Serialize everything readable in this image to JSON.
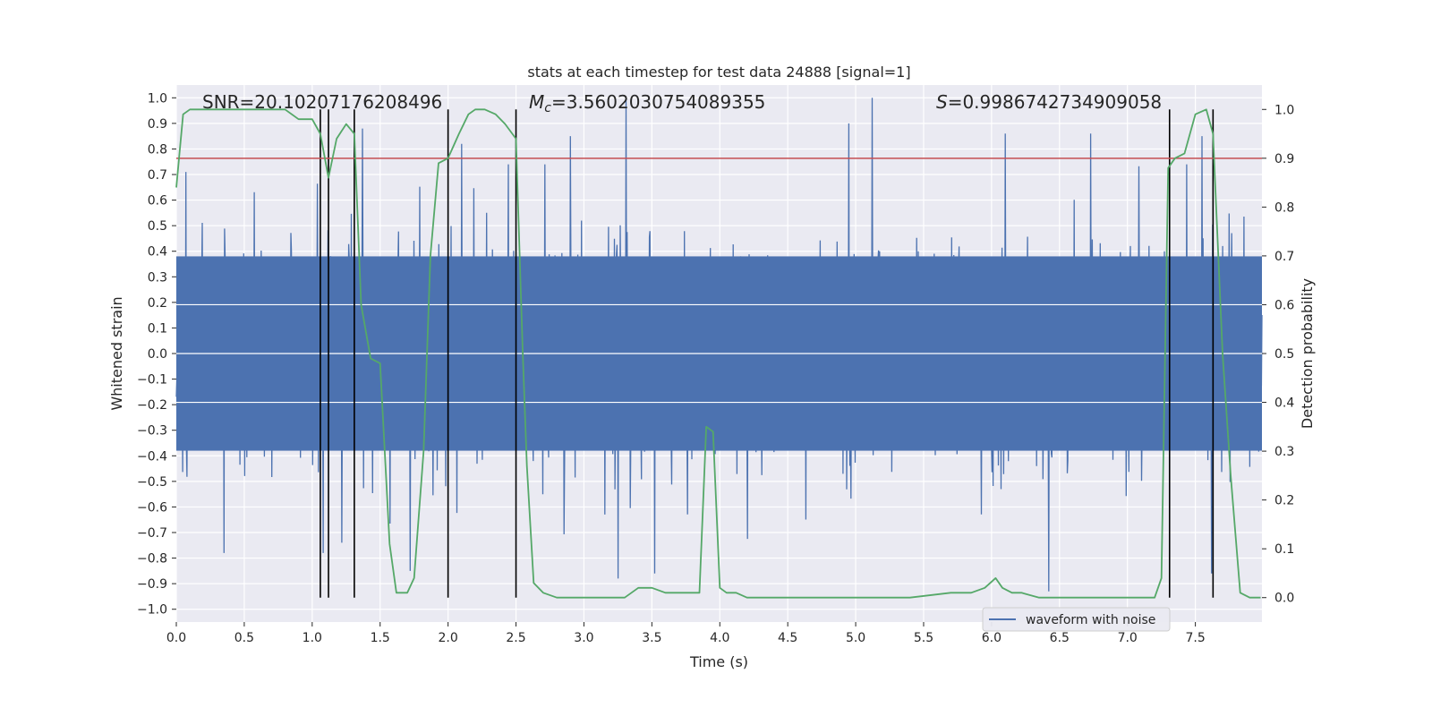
{
  "chart_data": {
    "type": "line",
    "title": "stats at each timestep for test data 24888 [signal=1]",
    "xlabel": "Time (s)",
    "ylabel_left": "Whitened strain",
    "ylabel_right": "Detection probability",
    "xlim": [
      0.0,
      7.99
    ],
    "ylim_left": [
      -1.05,
      1.05
    ],
    "ylim_right": [
      -0.05,
      1.05
    ],
    "x_ticks": [
      "0.0",
      "0.5",
      "1.0",
      "1.5",
      "2.0",
      "2.5",
      "3.0",
      "3.5",
      "4.0",
      "4.5",
      "5.0",
      "5.5",
      "6.0",
      "6.5",
      "7.0",
      "7.5"
    ],
    "y_ticks_left": [
      "−1.0",
      "−0.9",
      "−0.8",
      "−0.7",
      "−0.6",
      "−0.5",
      "−0.4",
      "−0.3",
      "−0.2",
      "−0.1",
      "0.0",
      "0.1",
      "0.2",
      "0.3",
      "0.4",
      "0.5",
      "0.6",
      "0.7",
      "0.8",
      "0.9",
      "1.0"
    ],
    "y_ticks_right": [
      "0.0",
      "0.1",
      "0.2",
      "0.3",
      "0.4",
      "0.5",
      "0.6",
      "0.7",
      "0.8",
      "0.9",
      "1.0"
    ],
    "annotations": {
      "snr": "SNR=20.10207176208496",
      "mc_symbol": "M",
      "mc_sub": "c",
      "mc_value": "=3.5602030754089355",
      "s_symbol": "S",
      "s_value": "=0.9986742734909058"
    },
    "legend": {
      "label": "waveform with noise",
      "placement": "lower-right"
    },
    "grid": true,
    "threshold": {
      "axis": "right",
      "value": 0.9,
      "color": "#c44e52"
    },
    "vertical_markers": [
      1.06,
      1.12,
      1.31,
      2.0,
      2.5,
      7.31,
      7.63
    ],
    "waveform": {
      "name": "waveform with noise",
      "color": "#4c72b0",
      "axis": "left",
      "n_samples": 2048,
      "typical_amplitude": 0.4,
      "notable_peaks": [
        {
          "x": 0.07,
          "y": 0.71
        },
        {
          "x": 0.35,
          "y": -0.78
        },
        {
          "x": 1.08,
          "y": -0.78
        },
        {
          "x": 1.37,
          "y": 0.88
        },
        {
          "x": 1.72,
          "y": -0.85
        },
        {
          "x": 2.1,
          "y": 0.82
        },
        {
          "x": 2.9,
          "y": 0.85
        },
        {
          "x": 3.25,
          "y": -0.88
        },
        {
          "x": 3.31,
          "y": 1.0
        },
        {
          "x": 3.52,
          "y": -0.86
        },
        {
          "x": 4.95,
          "y": 0.9
        },
        {
          "x": 5.12,
          "y": 1.0
        },
        {
          "x": 6.1,
          "y": 0.86
        },
        {
          "x": 6.42,
          "y": -0.93
        },
        {
          "x": 6.73,
          "y": 0.86
        },
        {
          "x": 7.55,
          "y": 0.85
        },
        {
          "x": 7.62,
          "y": -0.86
        }
      ]
    },
    "detection_probability": {
      "color": "#55a868",
      "axis": "right",
      "x": [
        0.0,
        0.05,
        0.1,
        0.2,
        0.4,
        0.6,
        0.8,
        0.9,
        1.0,
        1.06,
        1.12,
        1.18,
        1.25,
        1.31,
        1.36,
        1.43,
        1.5,
        1.57,
        1.62,
        1.7,
        1.75,
        1.82,
        1.87,
        1.93,
        2.0,
        2.08,
        2.15,
        2.2,
        2.27,
        2.35,
        2.42,
        2.5,
        2.55,
        2.58,
        2.63,
        2.7,
        2.8,
        2.9,
        3.0,
        3.1,
        3.2,
        3.3,
        3.4,
        3.5,
        3.6,
        3.7,
        3.8,
        3.85,
        3.9,
        3.95,
        4.0,
        4.05,
        4.12,
        4.2,
        4.3,
        4.6,
        5.0,
        5.2,
        5.4,
        5.7,
        5.85,
        5.95,
        6.03,
        6.08,
        6.15,
        6.22,
        6.35,
        6.6,
        6.8,
        7.1,
        7.2,
        7.25,
        7.3,
        7.35,
        7.42,
        7.5,
        7.58,
        7.63,
        7.7,
        7.76,
        7.83,
        7.9,
        7.98
      ],
      "y": [
        0.84,
        0.99,
        1.0,
        1.0,
        1.0,
        1.0,
        1.0,
        0.98,
        0.98,
        0.95,
        0.86,
        0.94,
        0.97,
        0.95,
        0.6,
        0.49,
        0.48,
        0.11,
        0.01,
        0.01,
        0.04,
        0.3,
        0.7,
        0.89,
        0.9,
        0.95,
        0.99,
        1.0,
        1.0,
        0.99,
        0.97,
        0.94,
        0.5,
        0.27,
        0.03,
        0.01,
        0.0,
        0.0,
        0.0,
        0.0,
        0.0,
        0.0,
        0.02,
        0.02,
        0.01,
        0.01,
        0.01,
        0.01,
        0.35,
        0.34,
        0.02,
        0.01,
        0.01,
        0.0,
        0.0,
        0.0,
        0.0,
        0.0,
        0.0,
        0.01,
        0.01,
        0.02,
        0.04,
        0.02,
        0.01,
        0.01,
        0.0,
        0.0,
        0.0,
        0.0,
        0.0,
        0.04,
        0.88,
        0.9,
        0.91,
        0.99,
        1.0,
        0.95,
        0.5,
        0.25,
        0.01,
        0.0,
        0.0
      ]
    }
  }
}
